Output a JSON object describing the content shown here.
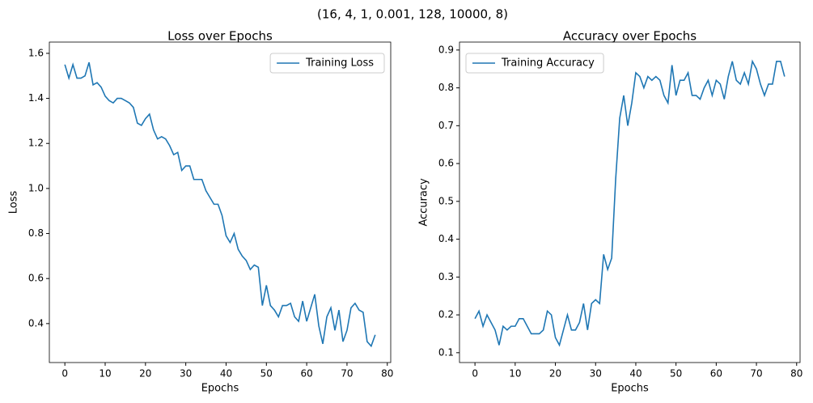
{
  "title": "(16, 4, 1, 0.001, 128, 10000, 8)",
  "chart_data": [
    {
      "type": "line",
      "title": "Loss over Epochs",
      "x_label": "Epochs",
      "y_label": "Loss",
      "x": [
        0,
        1,
        2,
        3,
        4,
        5,
        6,
        7,
        8,
        9,
        10,
        11,
        12,
        13,
        14,
        15,
        16,
        17,
        18,
        19,
        20,
        21,
        22,
        23,
        24,
        25,
        26,
        27,
        28,
        29,
        30,
        31,
        32,
        33,
        34,
        35,
        36,
        37,
        38,
        39,
        40,
        41,
        42,
        43,
        44,
        45,
        46,
        47,
        48,
        49,
        50,
        51,
        52,
        53,
        54,
        55,
        56,
        57,
        58,
        59,
        60,
        61,
        62,
        63,
        64,
        65,
        66,
        67,
        68,
        69,
        70,
        71,
        72,
        73,
        74,
        75,
        76,
        77
      ],
      "series": [
        {
          "name": "Training Loss",
          "color": "#1f77b4",
          "values": [
            1.55,
            1.49,
            1.55,
            1.49,
            1.49,
            1.5,
            1.56,
            1.46,
            1.47,
            1.45,
            1.41,
            1.39,
            1.38,
            1.4,
            1.4,
            1.39,
            1.38,
            1.36,
            1.29,
            1.28,
            1.31,
            1.33,
            1.26,
            1.22,
            1.23,
            1.22,
            1.19,
            1.15,
            1.16,
            1.08,
            1.1,
            1.1,
            1.04,
            1.04,
            1.04,
            0.99,
            0.96,
            0.93,
            0.93,
            0.88,
            0.79,
            0.76,
            0.8,
            0.73,
            0.7,
            0.68,
            0.64,
            0.66,
            0.65,
            0.48,
            0.57,
            0.48,
            0.46,
            0.43,
            0.48,
            0.48,
            0.49,
            0.43,
            0.41,
            0.5,
            0.41,
            0.47,
            0.53,
            0.39,
            0.31,
            0.43,
            0.47,
            0.37,
            0.46,
            0.32,
            0.37,
            0.47,
            0.49,
            0.46,
            0.45,
            0.32,
            0.3,
            0.35
          ]
        }
      ],
      "xlim": [
        -3.85,
        80.85
      ],
      "xticks": [
        0,
        10,
        20,
        30,
        40,
        50,
        60,
        70,
        80
      ],
      "ylim": [
        0.227,
        1.65
      ],
      "yticks": [
        0.4,
        0.6,
        0.8,
        {
          "value": 1,
          "label": "1.0"
        },
        1.2,
        1.4,
        1.6
      ],
      "legend": "upper right"
    },
    {
      "type": "line",
      "title": "Accuracy over Epochs",
      "x_label": "Epochs",
      "y_label": "Accuracy",
      "x": [
        0,
        1,
        2,
        3,
        4,
        5,
        6,
        7,
        8,
        9,
        10,
        11,
        12,
        13,
        14,
        15,
        16,
        17,
        18,
        19,
        20,
        21,
        22,
        23,
        24,
        25,
        26,
        27,
        28,
        29,
        30,
        31,
        32,
        33,
        34,
        35,
        36,
        37,
        38,
        39,
        40,
        41,
        42,
        43,
        44,
        45,
        46,
        47,
        48,
        49,
        50,
        51,
        52,
        53,
        54,
        55,
        56,
        57,
        58,
        59,
        60,
        61,
        62,
        63,
        64,
        65,
        66,
        67,
        68,
        69,
        70,
        71,
        72,
        73,
        74,
        75,
        76,
        77
      ],
      "series": [
        {
          "name": "Training Accuracy",
          "color": "#1f77b4",
          "values": [
            0.19,
            0.21,
            0.17,
            0.2,
            0.18,
            0.16,
            0.12,
            0.17,
            0.16,
            0.17,
            0.17,
            0.19,
            0.19,
            0.17,
            0.15,
            0.15,
            0.15,
            0.16,
            0.21,
            0.2,
            0.14,
            0.12,
            0.16,
            0.2,
            0.16,
            0.16,
            0.18,
            0.23,
            0.16,
            0.23,
            0.24,
            0.23,
            0.36,
            0.32,
            0.35,
            0.56,
            0.72,
            0.78,
            0.7,
            0.76,
            0.84,
            0.83,
            0.8,
            0.83,
            0.82,
            0.83,
            0.82,
            0.78,
            0.76,
            0.86,
            0.78,
            0.82,
            0.82,
            0.84,
            0.78,
            0.78,
            0.77,
            0.8,
            0.82,
            0.78,
            0.82,
            0.81,
            0.77,
            0.83,
            0.87,
            0.82,
            0.81,
            0.84,
            0.81,
            0.87,
            0.85,
            0.81,
            0.78,
            0.81,
            0.81,
            0.87,
            0.87,
            0.83
          ]
        }
      ],
      "xlim": [
        -3.85,
        80.85
      ],
      "xticks": [
        0,
        10,
        20,
        30,
        40,
        50,
        60,
        70,
        80
      ],
      "ylim": [
        0.074,
        0.921
      ],
      "yticks": [
        0.1,
        0.2,
        0.3,
        0.4,
        0.5,
        0.6,
        0.7,
        0.8,
        0.9
      ],
      "legend": "upper left"
    }
  ]
}
